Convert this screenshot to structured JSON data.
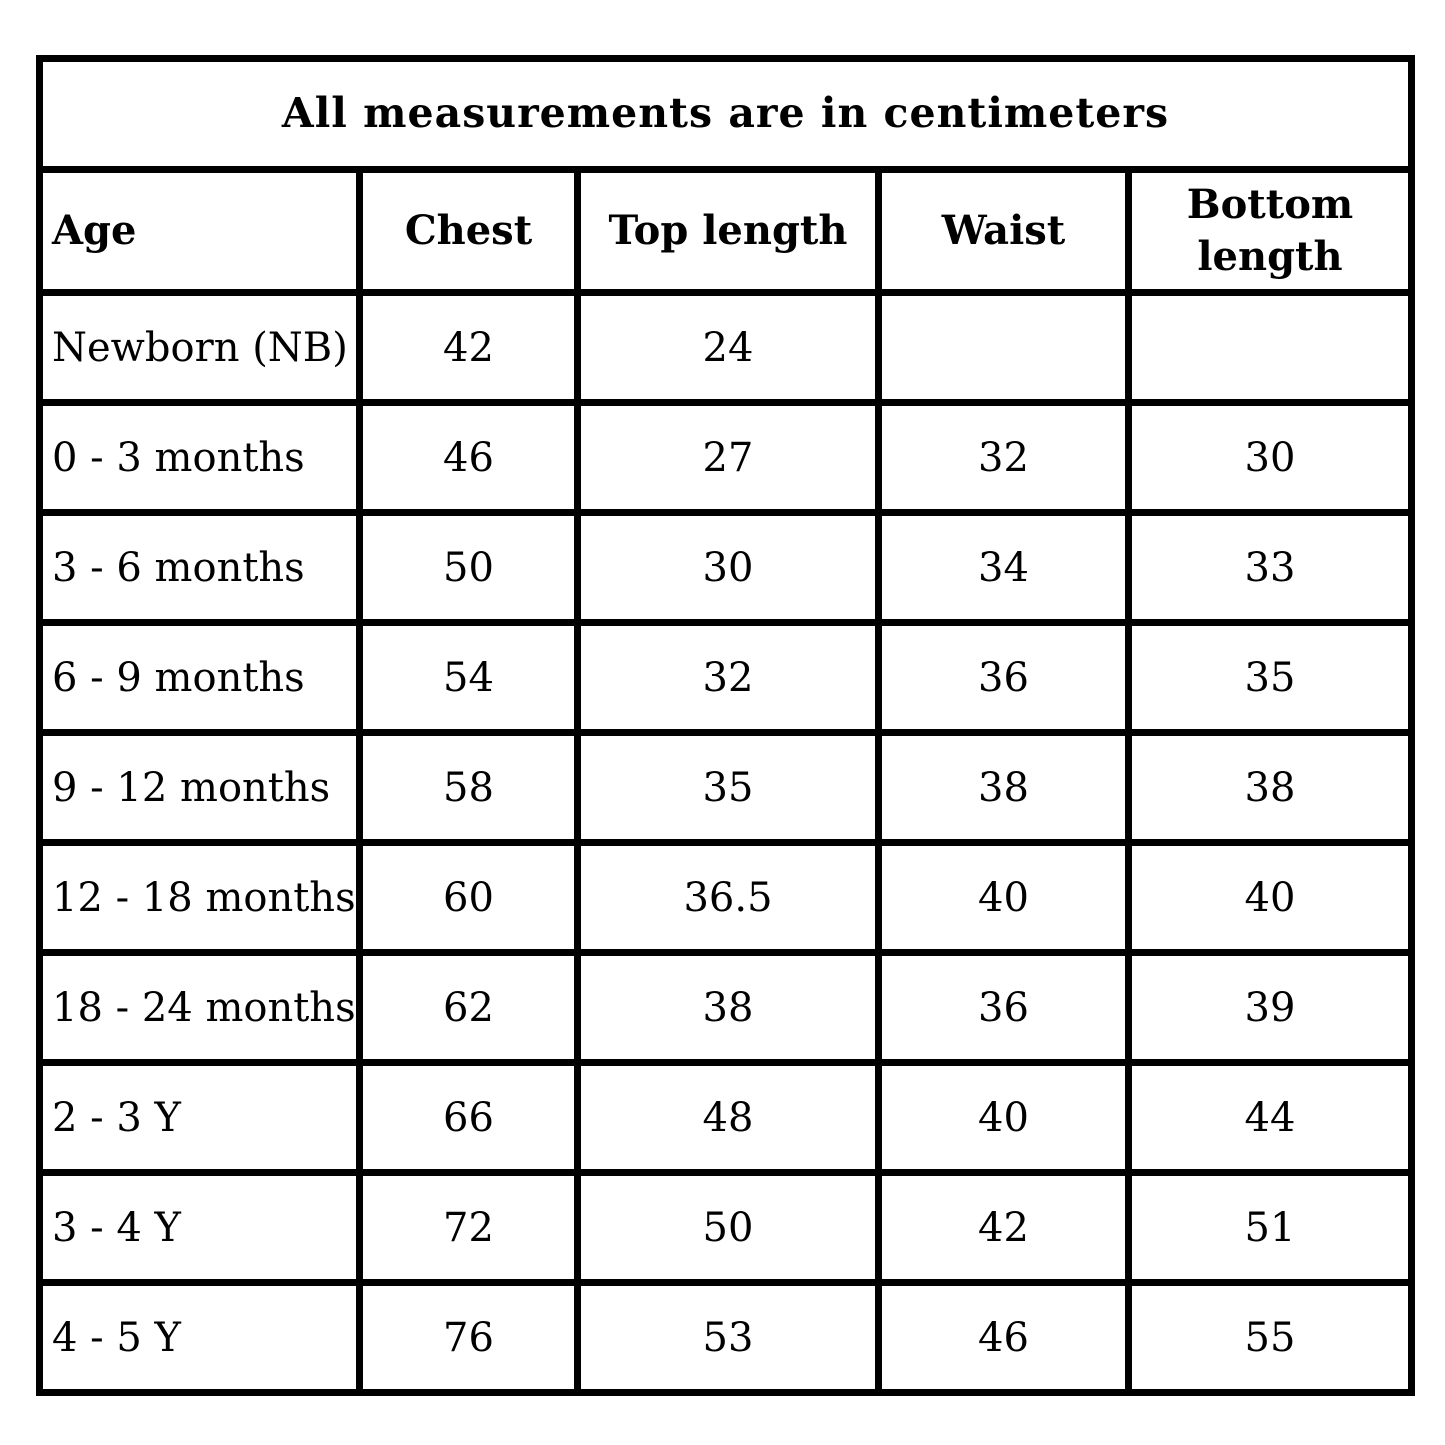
{
  "chart_data": {
    "type": "table",
    "title": "All measurements are in centimeters",
    "columns": [
      "Age",
      "Chest",
      "Top length",
      "Waist",
      "Bottom length"
    ],
    "rows": [
      [
        "Newborn (NB)",
        "42",
        "24",
        "",
        ""
      ],
      [
        "0 - 3 months",
        "46",
        "27",
        "32",
        "30"
      ],
      [
        "3 - 6 months",
        "50",
        "30",
        "34",
        "33"
      ],
      [
        "6 - 9 months",
        "54",
        "32",
        "36",
        "35"
      ],
      [
        "9 - 12 months",
        "58",
        "35",
        "38",
        "38"
      ],
      [
        "12 - 18 months",
        "60",
        "36.5",
        "40",
        "40"
      ],
      [
        "18 - 24 months",
        "62",
        "38",
        "36",
        "39"
      ],
      [
        "2 - 3 Y",
        "66",
        "48",
        "40",
        "44"
      ],
      [
        "3 - 4 Y",
        "72",
        "50",
        "42",
        "51"
      ],
      [
        "4 - 5 Y",
        "76",
        "53",
        "46",
        "55"
      ]
    ],
    "layout": {
      "grid": "on",
      "title_position": "top-center",
      "unit": "centimeters"
    },
    "colors": {
      "border": "#000000",
      "text": "#000000",
      "background": "#ffffff"
    }
  }
}
